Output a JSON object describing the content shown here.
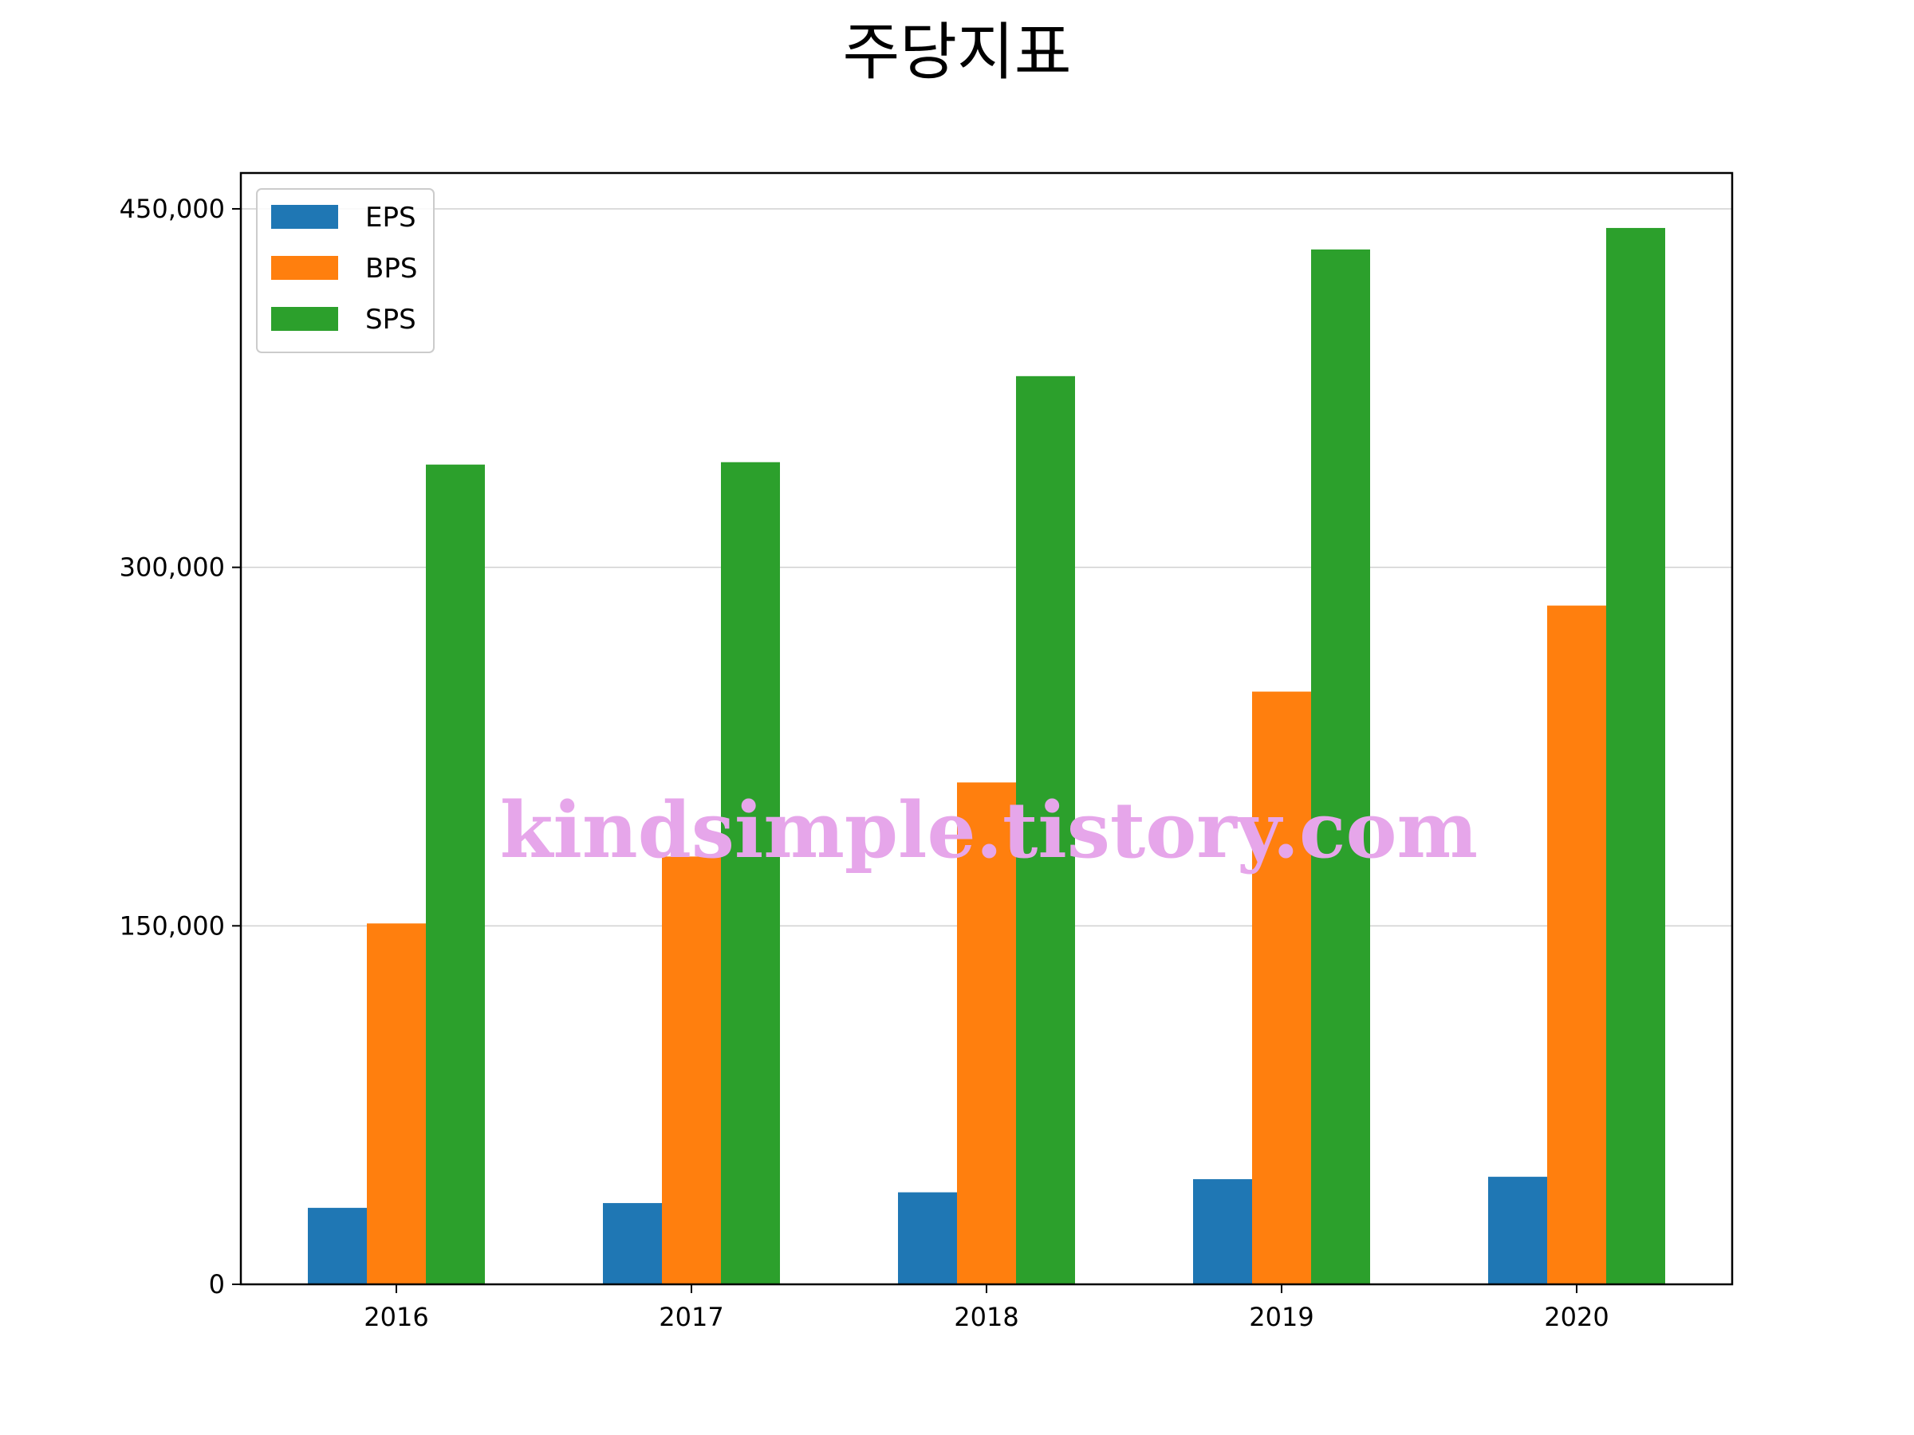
{
  "chart_data": {
    "type": "bar",
    "title": "주당지표",
    "xlabel": "",
    "ylabel": "",
    "categories": [
      "2016",
      "2017",
      "2018",
      "2019",
      "2020"
    ],
    "series": [
      {
        "name": "EPS",
        "color": "#1f77b4",
        "values": [
          32000,
          34000,
          38500,
          44000,
          45000
        ]
      },
      {
        "name": "BPS",
        "color": "#ff7f0e",
        "values": [
          151000,
          179000,
          210000,
          248000,
          284000
        ]
      },
      {
        "name": "SPS",
        "color": "#2ca02c",
        "values": [
          343000,
          344000,
          380000,
          433000,
          442000
        ]
      }
    ],
    "ylim": [
      0,
      465000
    ],
    "yticks": [
      0,
      150000,
      300000,
      450000
    ],
    "ytick_labels": [
      "0",
      "150,000",
      "300,000",
      "450,000"
    ],
    "grid": "horizontal",
    "legend_position": "upper-left"
  },
  "watermark": "kindsimple.tistory.com"
}
